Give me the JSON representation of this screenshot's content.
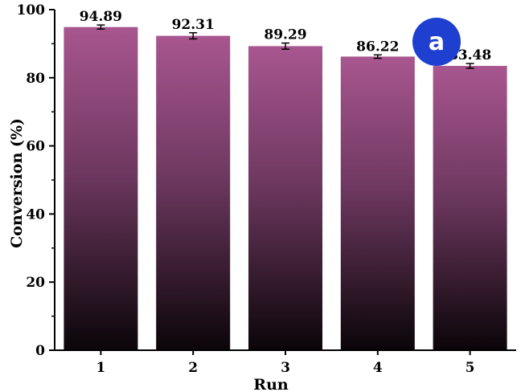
{
  "chart_data": {
    "type": "bar",
    "categories": [
      "1",
      "2",
      "3",
      "4",
      "5"
    ],
    "values": [
      94.89,
      92.31,
      89.29,
      86.22,
      83.48
    ],
    "errors": [
      0.6,
      0.9,
      0.9,
      0.5,
      0.7
    ],
    "data_labels": [
      "94.89",
      "92.31",
      "89.29",
      "86.22",
      "83.48"
    ],
    "xlabel": "Run",
    "ylabel": "Conversion (%)",
    "ylim": [
      0,
      100
    ],
    "yticks": [
      "0",
      "20",
      "40",
      "60",
      "80",
      "100"
    ],
    "ytick_values": [
      0,
      20,
      40,
      60,
      80,
      100
    ],
    "grid": false,
    "legend": "none",
    "bar_gradient_top": "#a8568f",
    "bar_gradient_bottom": "#0a0508"
  },
  "badge": {
    "text": "a",
    "color": "#1f3fd1"
  }
}
